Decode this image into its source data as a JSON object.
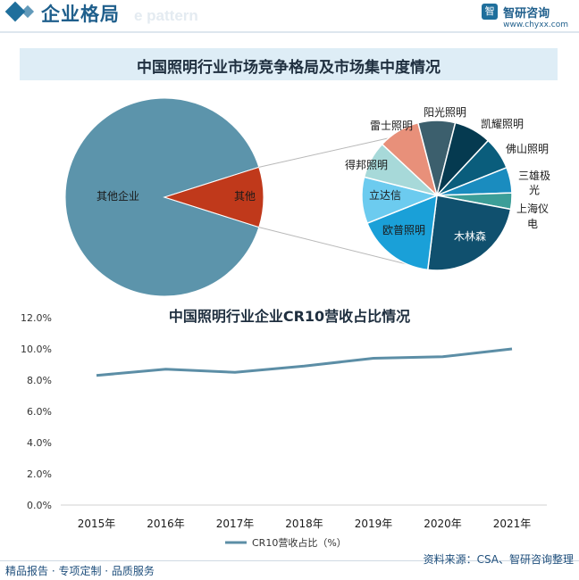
{
  "header": {
    "section_title": "企业格局",
    "watermark": "e pattern",
    "brand_name": "智研咨询",
    "brand_url": "www.chyxx.com",
    "brand_logo": "智"
  },
  "colors": {
    "pie_other": "#5c94ab",
    "pie_highlight": "#c0391b",
    "line": "#5c8ea6",
    "accent": "#1f5f8c",
    "title_bg": "#deedf6"
  },
  "chart_data": [
    {
      "type": "pie",
      "title": "中国照明行业市场竞争格局及市场集中度情况",
      "slices": [
        {
          "label": "其他企业",
          "value": 90.2,
          "color": "#5c94ab"
        },
        {
          "label": "其他",
          "value": 9.8,
          "color": "#c0391b"
        }
      ],
      "sub_pie": {
        "type": "pie",
        "slices": [
          {
            "label": "雷士照明",
            "value": 9.0,
            "color": "#e8907a"
          },
          {
            "label": "阳光照明",
            "value": 8.0,
            "color": "#3c5f6d"
          },
          {
            "label": "凯耀照明",
            "value": 8.0,
            "color": "#053a50"
          },
          {
            "label": "佛山照明",
            "value": 7.0,
            "color": "#0a5d7c"
          },
          {
            "label": "三雄极光",
            "value": 5.5,
            "color": "#1a8cbf"
          },
          {
            "label": "上海仪电",
            "value": 3.5,
            "color": "#3c9e98"
          },
          {
            "label": "木林森",
            "value": 24.0,
            "color": "#10506e"
          },
          {
            "label": "欧普照明",
            "value": 17.0,
            "color": "#1aa0d8"
          },
          {
            "label": "立达信",
            "value": 10.0,
            "color": "#6ccbef"
          },
          {
            "label": "得邦照明",
            "value": 8.0,
            "color": "#a7d9d9"
          }
        ]
      }
    },
    {
      "type": "line",
      "title": "中国照明行业企业CR10营收占比情况",
      "x": [
        "2015年",
        "2016年",
        "2017年",
        "2018年",
        "2019年",
        "2020年",
        "2021年"
      ],
      "series": [
        {
          "name": "CR10营收占比（%）",
          "values": [
            8.3,
            8.7,
            8.5,
            8.9,
            9.4,
            9.5,
            10.0
          ],
          "color": "#5c8ea6"
        }
      ],
      "yticks": [
        "0.0%",
        "2.0%",
        "4.0%",
        "6.0%",
        "8.0%",
        "10.0%",
        "12.0%"
      ],
      "ylim": [
        0,
        12
      ],
      "grid": false,
      "legend": "bottom"
    }
  ],
  "footer": {
    "left": "精品报告 · 专项定制 · 品质服务",
    "source": "资料来源：CSA、智研咨询整理"
  }
}
